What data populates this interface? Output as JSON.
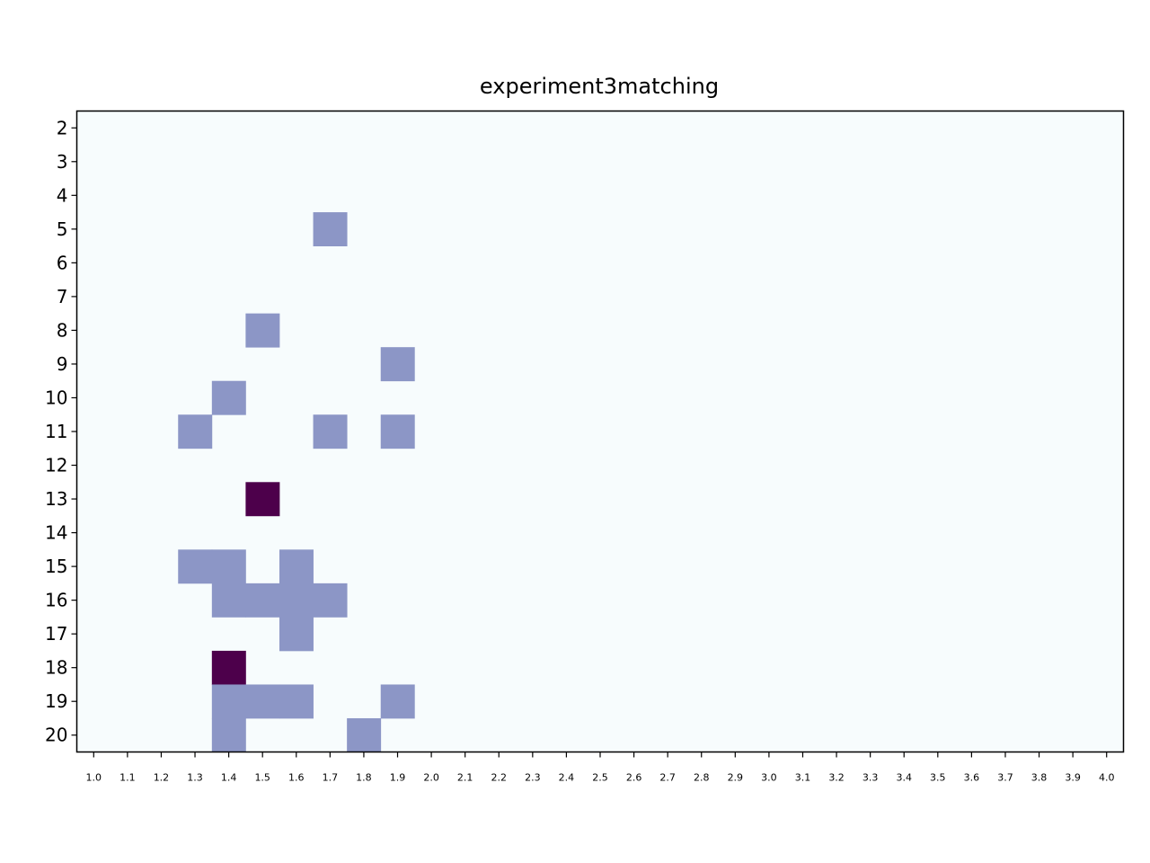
{
  "chart_data": {
    "type": "heatmap",
    "title": "experiment3matching",
    "x_categories": [
      "1.0",
      "1.1",
      "1.2",
      "1.3",
      "1.4",
      "1.5",
      "1.6",
      "1.7",
      "1.8",
      "1.9",
      "2.0",
      "2.1",
      "2.2",
      "2.3",
      "2.4",
      "2.5",
      "2.6",
      "2.7",
      "2.8",
      "2.9",
      "3.0",
      "3.1",
      "3.2",
      "3.3",
      "3.4",
      "3.5",
      "3.6",
      "3.7",
      "3.8",
      "3.9",
      "4.0"
    ],
    "y_categories": [
      "2",
      "3",
      "4",
      "5",
      "6",
      "7",
      "8",
      "9",
      "10",
      "11",
      "12",
      "13",
      "14",
      "15",
      "16",
      "17",
      "18",
      "19",
      "20"
    ],
    "cells": [
      {
        "x": "1.7",
        "y": "5",
        "level": 1
      },
      {
        "x": "1.5",
        "y": "8",
        "level": 1
      },
      {
        "x": "1.9",
        "y": "9",
        "level": 1
      },
      {
        "x": "1.4",
        "y": "10",
        "level": 1
      },
      {
        "x": "1.3",
        "y": "11",
        "level": 1
      },
      {
        "x": "1.7",
        "y": "11",
        "level": 1
      },
      {
        "x": "1.9",
        "y": "11",
        "level": 1
      },
      {
        "x": "1.5",
        "y": "13",
        "level": 2
      },
      {
        "x": "1.3",
        "y": "15",
        "level": 1
      },
      {
        "x": "1.4",
        "y": "15",
        "level": 1
      },
      {
        "x": "1.6",
        "y": "15",
        "level": 1
      },
      {
        "x": "1.4",
        "y": "16",
        "level": 1
      },
      {
        "x": "1.5",
        "y": "16",
        "level": 1
      },
      {
        "x": "1.6",
        "y": "16",
        "level": 1
      },
      {
        "x": "1.7",
        "y": "16",
        "level": 1
      },
      {
        "x": "1.6",
        "y": "17",
        "level": 1
      },
      {
        "x": "1.4",
        "y": "18",
        "level": 2
      },
      {
        "x": "1.4",
        "y": "19",
        "level": 1
      },
      {
        "x": "1.5",
        "y": "19",
        "level": 1
      },
      {
        "x": "1.6",
        "y": "19",
        "level": 1
      },
      {
        "x": "1.9",
        "y": "19",
        "level": 1
      },
      {
        "x": "1.4",
        "y": "20",
        "level": 1
      },
      {
        "x": "1.8",
        "y": "20",
        "level": 1
      }
    ],
    "colormap": {
      "0": "#f7fcfd",
      "1": "#8c96c6",
      "2": "#4d004b"
    },
    "grid": false
  }
}
